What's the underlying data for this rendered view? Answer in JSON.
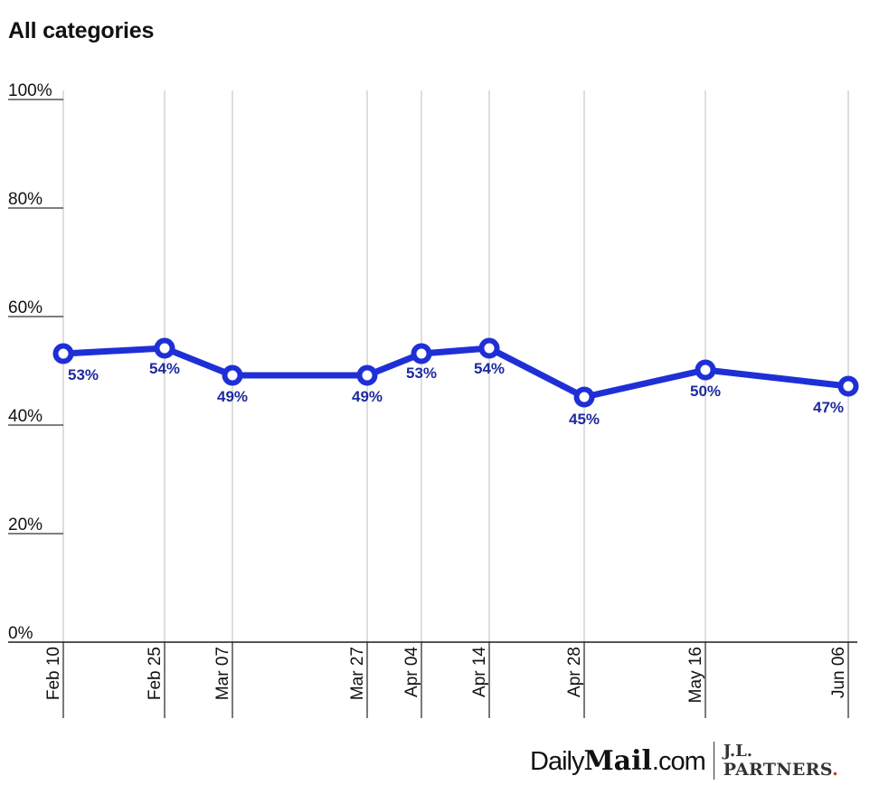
{
  "header": {
    "title": "All categories"
  },
  "footer": {
    "logo_daily": "Daily",
    "logo_mail": "Mail",
    "logo_com": ".com",
    "partner_line1": "J.L.",
    "partner_line2": "PARTNERS",
    "partner_dot": "."
  },
  "colors": {
    "line": "#1f2fd6",
    "label": "#1e2a9e",
    "grid": "#d3d3d3",
    "axis": "#555555"
  },
  "chart_data": {
    "type": "line",
    "title": "All categories",
    "xlabel": "",
    "ylabel": "",
    "ylim": [
      0,
      100
    ],
    "yticks": [
      "0%",
      "20%",
      "40%",
      "60%",
      "80%",
      "100%"
    ],
    "categories": [
      "Feb 10",
      "Feb 25",
      "Mar 07",
      "Mar 27",
      "Apr 04",
      "Apr 14",
      "Apr 28",
      "May 16",
      "Jun 06"
    ],
    "series": [
      {
        "name": "All categories",
        "values": [
          53,
          54,
          49,
          49,
          53,
          54,
          45,
          50,
          47
        ]
      }
    ],
    "data_labels": [
      "53%",
      "54%",
      "49%",
      "49%",
      "53%",
      "54%",
      "45%",
      "50%",
      "47%"
    ],
    "grid": {
      "vertical": true,
      "horizontal": false
    },
    "legend": "none"
  }
}
